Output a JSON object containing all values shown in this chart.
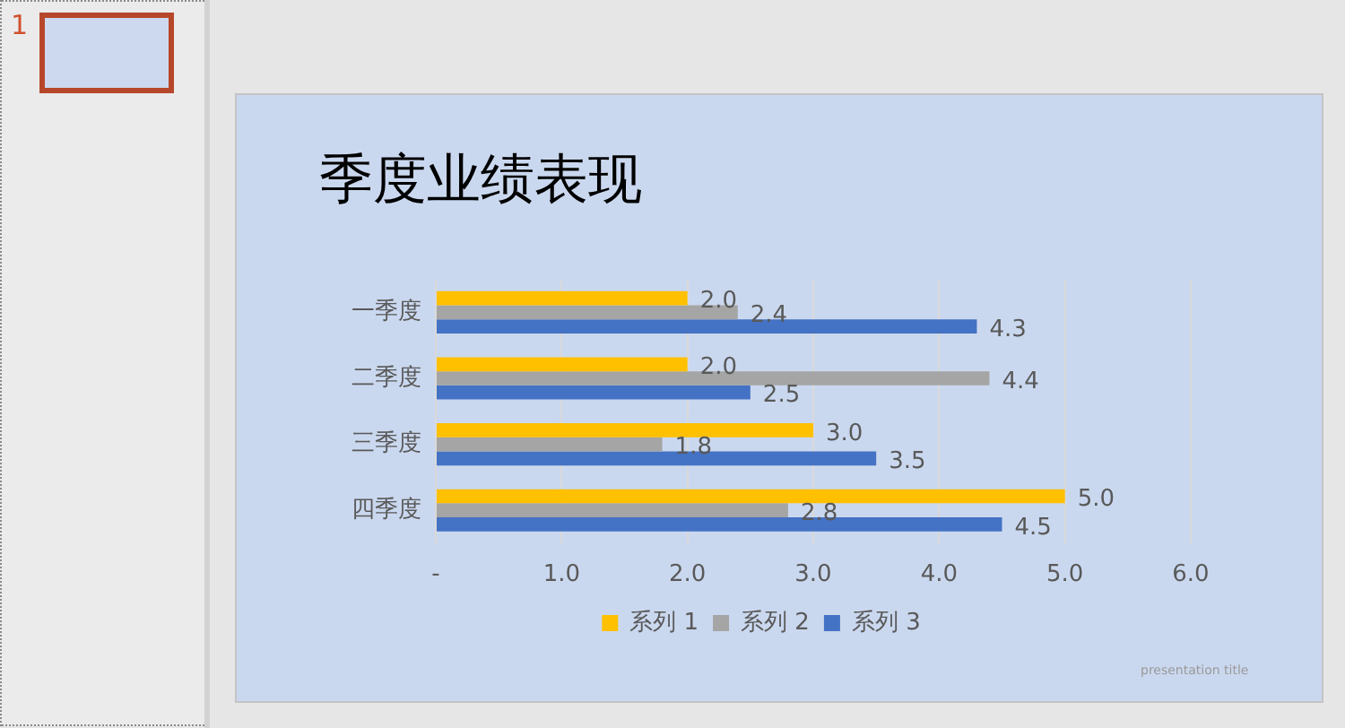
{
  "chart_data": {
    "type": "bar",
    "orientation": "horizontal",
    "title": "季度业绩表现",
    "categories": [
      "一季度",
      "二季度",
      "三季度",
      "四季度"
    ],
    "series": [
      {
        "name": "系列 1",
        "color": "#ffc000",
        "values": [
          2,
          2,
          3,
          5
        ],
        "value_labels": [
          "2.0",
          "2.0",
          "3.0",
          "5.0"
        ]
      },
      {
        "name": "系列 2",
        "color": "#a5a5a5",
        "values": [
          2.4,
          4.4,
          1.8,
          2.8
        ],
        "value_labels": [
          "2.4",
          "4.4",
          "1.8",
          "2.8"
        ]
      },
      {
        "name": "系列 3",
        "color": "#4472c4",
        "values": [
          4.3,
          2.5,
          3.5,
          4.5
        ],
        "value_labels": [
          "4.3",
          "2.5",
          "3.5",
          "4.5"
        ]
      }
    ],
    "xlim": [
      0,
      6
    ],
    "xticks": [
      {
        "value": 0,
        "label": "-"
      },
      {
        "value": 1,
        "label": "1.0"
      },
      {
        "value": 2,
        "label": "2.0"
      },
      {
        "value": 3,
        "label": "3.0"
      },
      {
        "value": 4,
        "label": "4.0"
      },
      {
        "value": 5,
        "label": "5.0"
      },
      {
        "value": 6,
        "label": "6.0"
      }
    ],
    "grid": "x",
    "legend": "bottom",
    "annotations": [
      "1",
      "presentation title"
    ]
  }
}
